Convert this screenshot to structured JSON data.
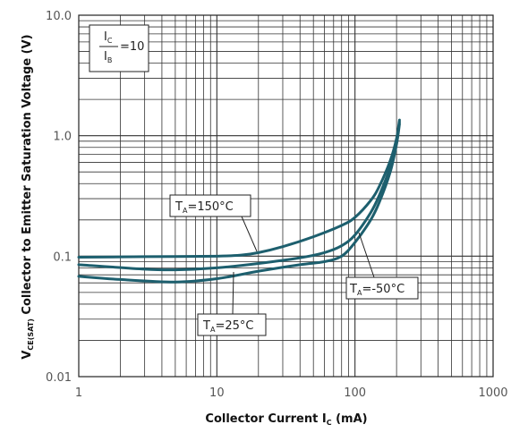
{
  "chart_data": {
    "type": "line",
    "xscale": "log",
    "yscale": "log",
    "xlim": [
      1,
      1000
    ],
    "ylim": [
      0.01,
      10
    ],
    "grid": true,
    "xlabel": {
      "main": "Collector Current I",
      "sub": "C",
      "suffix": " (mA)"
    },
    "ylabel": {
      "main": "V",
      "sub": "CE(SAT)",
      "suffix": " Collector to Emitter Saturation Voltage (V)"
    },
    "x_ticks": [
      "1",
      "10",
      "100",
      "1000"
    ],
    "y_ticks": [
      "0.01",
      "0.1",
      "1.0",
      "10.0"
    ],
    "condition": {
      "num": "I",
      "num_sub": "C",
      "den": "I",
      "den_sub": "B",
      "value": "=10"
    },
    "series": [
      {
        "name": "TA=150°C",
        "label": {
          "main": "T",
          "sub": "A",
          "value": "=150°C"
        },
        "points": [
          [
            1,
            0.098
          ],
          [
            3,
            0.099
          ],
          [
            10,
            0.1
          ],
          [
            15,
            0.102
          ],
          [
            20,
            0.107
          ],
          [
            30,
            0.12
          ],
          [
            50,
            0.145
          ],
          [
            80,
            0.18
          ],
          [
            100,
            0.21
          ],
          [
            130,
            0.29
          ],
          [
            150,
            0.38
          ],
          [
            180,
            0.62
          ],
          [
            200,
            0.95
          ],
          [
            210,
            1.35
          ]
        ]
      },
      {
        "name": "TA=25°C",
        "label": {
          "main": "T",
          "sub": "A",
          "value": "=25°C"
        },
        "points": [
          [
            1,
            0.085
          ],
          [
            3,
            0.078
          ],
          [
            5,
            0.077
          ],
          [
            10,
            0.08
          ],
          [
            20,
            0.087
          ],
          [
            40,
            0.097
          ],
          [
            60,
            0.107
          ],
          [
            80,
            0.122
          ],
          [
            100,
            0.15
          ],
          [
            130,
            0.23
          ],
          [
            150,
            0.32
          ],
          [
            180,
            0.55
          ],
          [
            200,
            0.9
          ],
          [
            210,
            1.3
          ]
        ]
      },
      {
        "name": "TA=-50°C",
        "label": {
          "main": "T",
          "sub": "A",
          "value": "=-50°C"
        },
        "points": [
          [
            1,
            0.068
          ],
          [
            2,
            0.064
          ],
          [
            5,
            0.061
          ],
          [
            10,
            0.065
          ],
          [
            20,
            0.075
          ],
          [
            40,
            0.085
          ],
          [
            60,
            0.09
          ],
          [
            80,
            0.1
          ],
          [
            100,
            0.13
          ],
          [
            130,
            0.2
          ],
          [
            150,
            0.28
          ],
          [
            180,
            0.5
          ],
          [
            200,
            0.85
          ],
          [
            210,
            1.25
          ]
        ]
      }
    ],
    "line_color": "#1d5f6e"
  }
}
